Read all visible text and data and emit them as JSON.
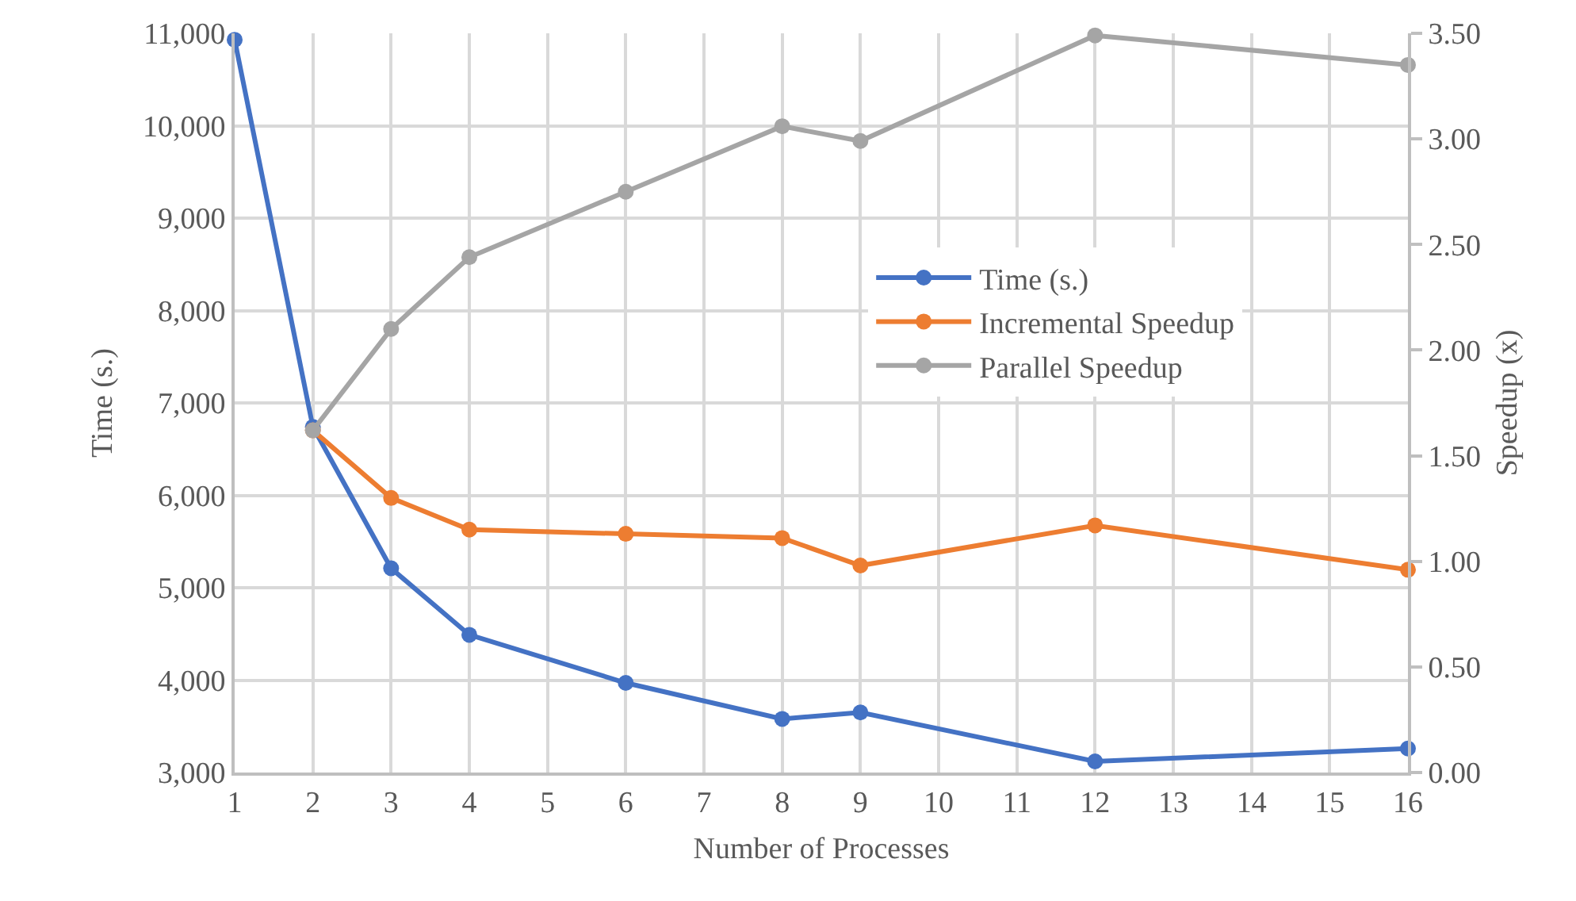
{
  "chart_data": {
    "type": "line",
    "xlabel": "Number of Processes",
    "ylabel": "Time (s.)",
    "y2label": "Speedup (x)",
    "x": [
      1,
      2,
      3,
      4,
      6,
      8,
      9,
      12,
      16
    ],
    "series": [
      {
        "name": "Time (s.)",
        "color": "#4472c4",
        "values": [
          10930,
          6740,
          5210,
          4490,
          3970,
          3580,
          3650,
          3120,
          3260
        ]
      },
      {
        "name": "Incremental Speedup",
        "color": "#ed7d31",
        "axis": "y2",
        "x": [
          2,
          3,
          4,
          6,
          8,
          9,
          12,
          16
        ],
        "values": [
          1.62,
          1.3,
          1.15,
          1.13,
          1.11,
          0.98,
          1.17,
          0.96
        ]
      },
      {
        "name": "Parallel Speedup",
        "color": "#a5a5a5",
        "axis": "y2",
        "x": [
          2,
          3,
          4,
          6,
          8,
          9,
          12,
          16
        ],
        "values": [
          1.62,
          2.1,
          2.44,
          2.75,
          3.06,
          2.99,
          3.49,
          3.35
        ]
      }
    ],
    "xlim": [
      1,
      16
    ],
    "xticks": [
      1,
      2,
      3,
      4,
      5,
      6,
      7,
      8,
      9,
      10,
      11,
      12,
      13,
      14,
      15,
      16
    ],
    "ylim": [
      3000,
      11000
    ],
    "yticks": [
      {
        "value": 3000,
        "label": "3,000"
      },
      {
        "value": 4000,
        "label": "4,000"
      },
      {
        "value": 5000,
        "label": "5,000"
      },
      {
        "value": 6000,
        "label": "6,000"
      },
      {
        "value": 7000,
        "label": "7,000"
      },
      {
        "value": 8000,
        "label": "8,000"
      },
      {
        "value": 9000,
        "label": "9,000"
      },
      {
        "value": 10000,
        "label": "10,000"
      },
      {
        "value": 11000,
        "label": "11,000"
      }
    ],
    "y2lim": [
      0,
      3.5
    ],
    "y2ticks": [
      {
        "value": 0,
        "label": "0.00"
      },
      {
        "value": 0.5,
        "label": "0.50"
      },
      {
        "value": 1,
        "label": "1.00"
      },
      {
        "value": 1.5,
        "label": "1.50"
      },
      {
        "value": 2,
        "label": "2.00"
      },
      {
        "value": 2.5,
        "label": "2.50"
      },
      {
        "value": 3,
        "label": "3.00"
      },
      {
        "value": 3.5,
        "label": "3.50"
      }
    ],
    "grid": true,
    "legend": "right",
    "marker": "circle",
    "line_style": "solid"
  }
}
